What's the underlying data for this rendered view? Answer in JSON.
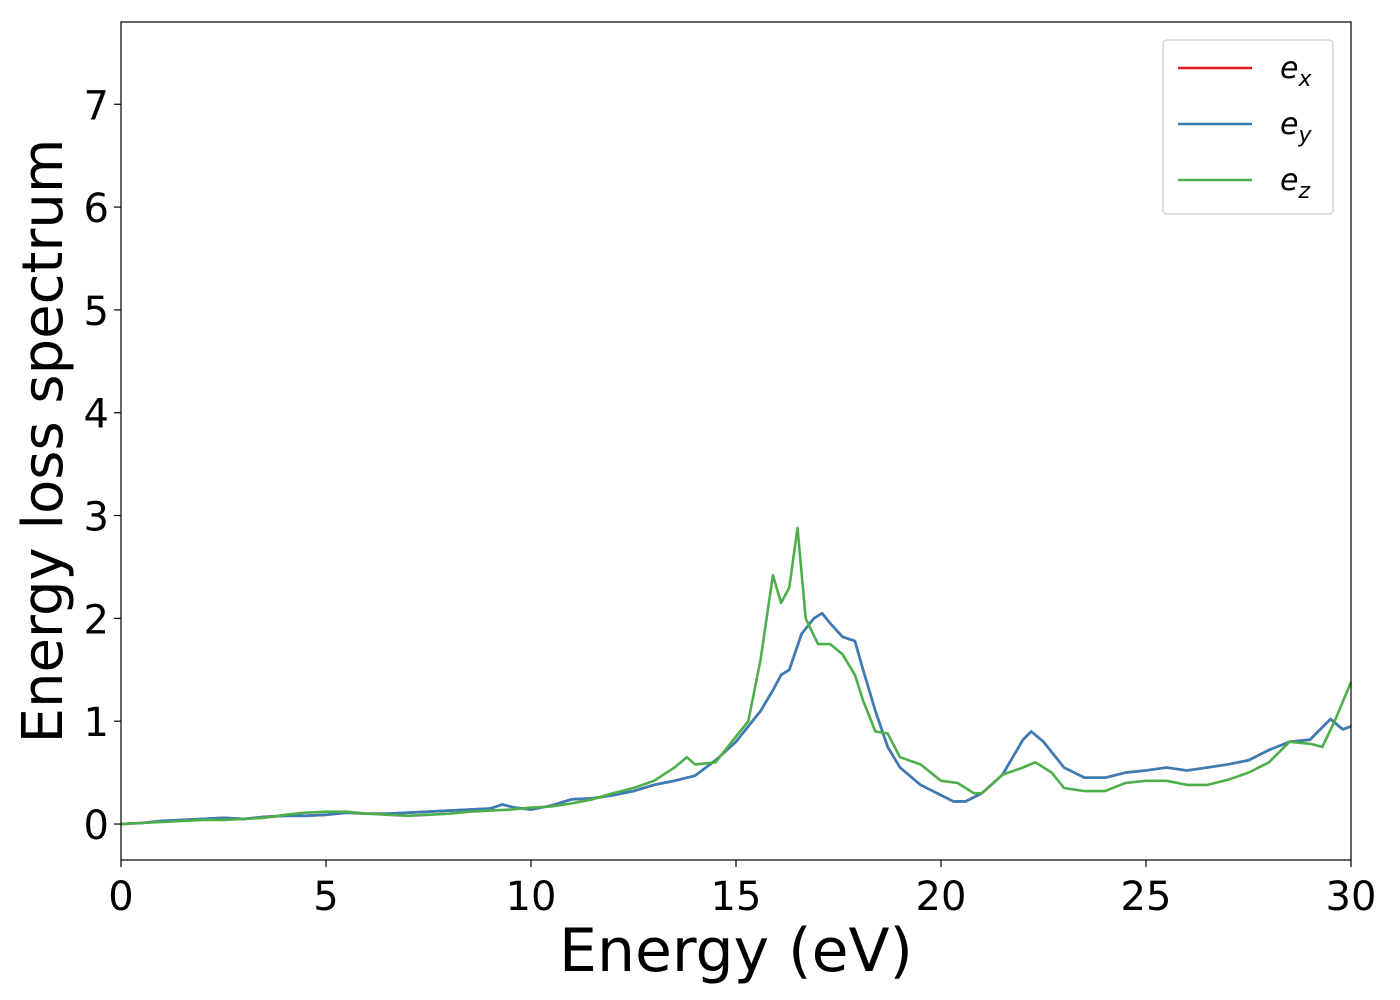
{
  "chart_data": {
    "type": "line",
    "title": "",
    "xlabel": "Energy (eV)",
    "ylabel": "Energy loss spectrum",
    "xlim": [
      0,
      30
    ],
    "ylim": [
      -0.35,
      7.8
    ],
    "xticks": [
      0,
      5,
      10,
      15,
      20,
      25,
      30
    ],
    "yticks": [
      0,
      1,
      2,
      3,
      4,
      5,
      6,
      7
    ],
    "grid": false,
    "legend_position": "top-right",
    "series": [
      {
        "name": "e_x",
        "legend_base": "e",
        "legend_sub": "x",
        "color": "#e41a1c",
        "x": [
          0,
          0.5,
          1,
          1.5,
          2,
          2.5,
          3,
          3.5,
          4,
          4.5,
          5,
          5.5,
          6,
          6.5,
          7,
          7.5,
          8,
          8.5,
          9,
          9.3,
          9.6,
          10,
          10.5,
          11,
          11.5,
          12,
          12.5,
          13,
          13.5,
          14,
          14.5,
          15,
          15.3,
          15.6,
          15.9,
          16.1,
          16.3,
          16.6,
          16.9,
          17.1,
          17.3,
          17.6,
          17.9,
          18.1,
          18.4,
          18.7,
          19,
          19.5,
          20,
          20.3,
          20.6,
          21,
          21.5,
          22,
          22.2,
          22.5,
          23,
          23.5,
          24,
          24.5,
          25,
          25.5,
          26,
          26.5,
          27,
          27.5,
          28,
          28.5,
          29,
          29.5,
          29.8,
          30
        ],
        "y": [
          0,
          0.01,
          0.03,
          0.04,
          0.05,
          0.06,
          0.05,
          0.07,
          0.08,
          0.08,
          0.09,
          0.11,
          0.1,
          0.1,
          0.11,
          0.12,
          0.13,
          0.14,
          0.15,
          0.19,
          0.16,
          0.14,
          0.18,
          0.24,
          0.25,
          0.28,
          0.32,
          0.38,
          0.42,
          0.47,
          0.62,
          0.8,
          0.95,
          1.1,
          1.3,
          1.45,
          1.5,
          1.85,
          2.0,
          2.05,
          1.95,
          1.82,
          1.78,
          1.5,
          1.1,
          0.75,
          0.55,
          0.38,
          0.28,
          0.22,
          0.22,
          0.3,
          0.48,
          0.82,
          0.9,
          0.8,
          0.55,
          0.45,
          0.45,
          0.5,
          0.52,
          0.55,
          0.52,
          0.55,
          0.58,
          0.62,
          0.72,
          0.8,
          0.82,
          1.02,
          0.92,
          0.95
        ]
      },
      {
        "name": "e_y",
        "legend_base": "e",
        "legend_sub": "y",
        "color": "#377eb8",
        "x": [
          0,
          0.5,
          1,
          1.5,
          2,
          2.5,
          3,
          3.5,
          4,
          4.5,
          5,
          5.5,
          6,
          6.5,
          7,
          7.5,
          8,
          8.5,
          9,
          9.3,
          9.6,
          10,
          10.5,
          11,
          11.5,
          12,
          12.5,
          13,
          13.5,
          14,
          14.5,
          15,
          15.3,
          15.6,
          15.9,
          16.1,
          16.3,
          16.6,
          16.9,
          17.1,
          17.3,
          17.6,
          17.9,
          18.1,
          18.4,
          18.7,
          19,
          19.5,
          20,
          20.3,
          20.6,
          21,
          21.5,
          22,
          22.2,
          22.5,
          23,
          23.5,
          24,
          24.5,
          25,
          25.5,
          26,
          26.5,
          27,
          27.5,
          28,
          28.5,
          29,
          29.5,
          29.8,
          30
        ],
        "y": [
          0,
          0.01,
          0.03,
          0.04,
          0.05,
          0.06,
          0.05,
          0.07,
          0.08,
          0.08,
          0.09,
          0.11,
          0.1,
          0.1,
          0.11,
          0.12,
          0.13,
          0.14,
          0.15,
          0.19,
          0.16,
          0.14,
          0.18,
          0.24,
          0.25,
          0.28,
          0.32,
          0.38,
          0.42,
          0.47,
          0.62,
          0.8,
          0.95,
          1.1,
          1.3,
          1.45,
          1.5,
          1.85,
          2.0,
          2.05,
          1.95,
          1.82,
          1.78,
          1.5,
          1.1,
          0.75,
          0.55,
          0.38,
          0.28,
          0.22,
          0.22,
          0.3,
          0.48,
          0.82,
          0.9,
          0.8,
          0.55,
          0.45,
          0.45,
          0.5,
          0.52,
          0.55,
          0.52,
          0.55,
          0.58,
          0.62,
          0.72,
          0.8,
          0.82,
          1.02,
          0.92,
          0.95
        ]
      },
      {
        "name": "e_z",
        "legend_base": "e",
        "legend_sub": "z",
        "color": "#4daf4a",
        "x": [
          0,
          0.5,
          1,
          1.5,
          2,
          2.5,
          3,
          3.5,
          4,
          4.5,
          5,
          5.5,
          6,
          6.5,
          7,
          7.5,
          8,
          8.5,
          9,
          9.5,
          10,
          10.5,
          11,
          11.5,
          12,
          12.5,
          13,
          13.5,
          13.8,
          14,
          14.5,
          15,
          15.3,
          15.6,
          15.9,
          16.1,
          16.3,
          16.5,
          16.7,
          17,
          17.3,
          17.6,
          17.9,
          18.1,
          18.4,
          18.7,
          19,
          19.5,
          20,
          20.4,
          20.8,
          21,
          21.5,
          22,
          22.3,
          22.7,
          23,
          23.5,
          24,
          24.5,
          25,
          25.5,
          26,
          26.5,
          27,
          27.5,
          28,
          28.5,
          29,
          29.3,
          29.6,
          30
        ],
        "y": [
          0,
          0.01,
          0.02,
          0.03,
          0.04,
          0.04,
          0.05,
          0.06,
          0.09,
          0.11,
          0.12,
          0.12,
          0.1,
          0.09,
          0.08,
          0.09,
          0.1,
          0.12,
          0.13,
          0.14,
          0.16,
          0.17,
          0.2,
          0.24,
          0.3,
          0.35,
          0.42,
          0.55,
          0.65,
          0.58,
          0.6,
          0.85,
          1.0,
          1.6,
          2.42,
          2.15,
          2.3,
          2.88,
          2.0,
          1.75,
          1.75,
          1.65,
          1.45,
          1.2,
          0.9,
          0.88,
          0.65,
          0.58,
          0.42,
          0.4,
          0.3,
          0.3,
          0.48,
          0.55,
          0.6,
          0.5,
          0.35,
          0.32,
          0.32,
          0.4,
          0.42,
          0.42,
          0.38,
          0.38,
          0.43,
          0.5,
          0.6,
          0.8,
          0.78,
          0.75,
          1.0,
          1.38
        ]
      }
    ]
  }
}
